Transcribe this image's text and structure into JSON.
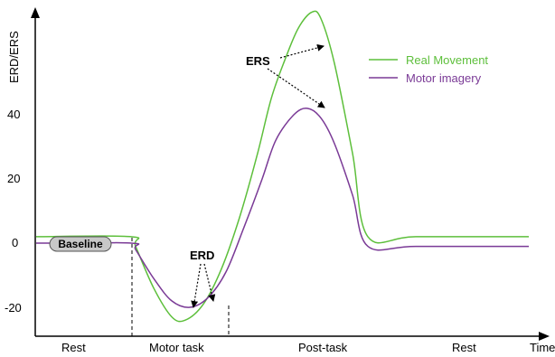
{
  "chart_data": {
    "type": "line",
    "ylabel": "ERD/ERS",
    "xlabel": "Time",
    "ylim": [
      -26,
      80
    ],
    "y_ticks": [
      "40",
      "20",
      "0",
      "-20"
    ],
    "y_tick_values": [
      40,
      20,
      0,
      -20
    ],
    "phases": [
      "Rest",
      "Motor task",
      "Post-task",
      "Rest"
    ],
    "series": [
      {
        "name": "Real Movement",
        "color": "#5dbf3b",
        "points": [
          [
            0,
            2
          ],
          [
            105,
            2
          ],
          [
            110,
            -1
          ],
          [
            130,
            -14
          ],
          [
            150,
            -23
          ],
          [
            165,
            -24
          ],
          [
            185,
            -19
          ],
          [
            205,
            -8
          ],
          [
            225,
            8
          ],
          [
            245,
            28
          ],
          [
            260,
            45
          ],
          [
            275,
            57
          ],
          [
            290,
            67
          ],
          [
            305,
            72
          ],
          [
            315,
            70
          ],
          [
            330,
            56
          ],
          [
            350,
            28
          ],
          [
            367,
            2
          ],
          [
            420,
            2
          ],
          [
            545,
            2
          ]
        ]
      },
      {
        "name": "Motor imagery",
        "color": "#7a3a96",
        "points": [
          [
            0,
            0
          ],
          [
            105,
            0
          ],
          [
            110,
            -2
          ],
          [
            130,
            -11
          ],
          [
            150,
            -18
          ],
          [
            170,
            -20
          ],
          [
            190,
            -17
          ],
          [
            210,
            -9
          ],
          [
            230,
            5
          ],
          [
            250,
            20
          ],
          [
            265,
            32
          ],
          [
            285,
            40
          ],
          [
            300,
            42
          ],
          [
            315,
            39
          ],
          [
            330,
            31
          ],
          [
            350,
            15
          ],
          [
            367,
            -1
          ],
          [
            420,
            -1
          ],
          [
            545,
            -1
          ]
        ]
      }
    ],
    "annotations": {
      "erd": "ERD",
      "ers": "ERS",
      "baseline": "Baseline"
    },
    "legend_position": "top-right",
    "grid": false
  }
}
